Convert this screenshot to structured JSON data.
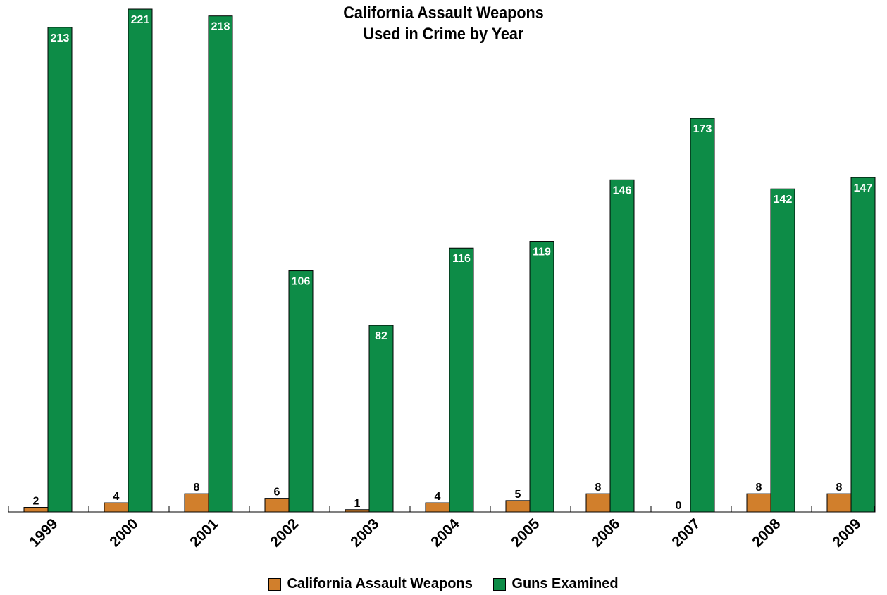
{
  "chart_data": {
    "type": "bar",
    "title_lines": [
      "California Assault Weapons",
      "Used in Crime by Year"
    ],
    "categories": [
      "1999",
      "2000",
      "2001",
      "2002",
      "2003",
      "2004",
      "2005",
      "2006",
      "2007",
      "2008",
      "2009"
    ],
    "series": [
      {
        "name": "California Assault Weapons",
        "values": [
          2,
          4,
          8,
          6,
          1,
          4,
          5,
          8,
          0,
          8,
          8
        ],
        "color": "#d17f2c"
      },
      {
        "name": "Guns Examined",
        "values": [
          213,
          221,
          218,
          106,
          82,
          116,
          119,
          146,
          173,
          142,
          147
        ],
        "color": "#0d8c47"
      }
    ],
    "ylim": [
      0,
      221
    ],
    "grid": false,
    "legend_position": "bottom"
  }
}
